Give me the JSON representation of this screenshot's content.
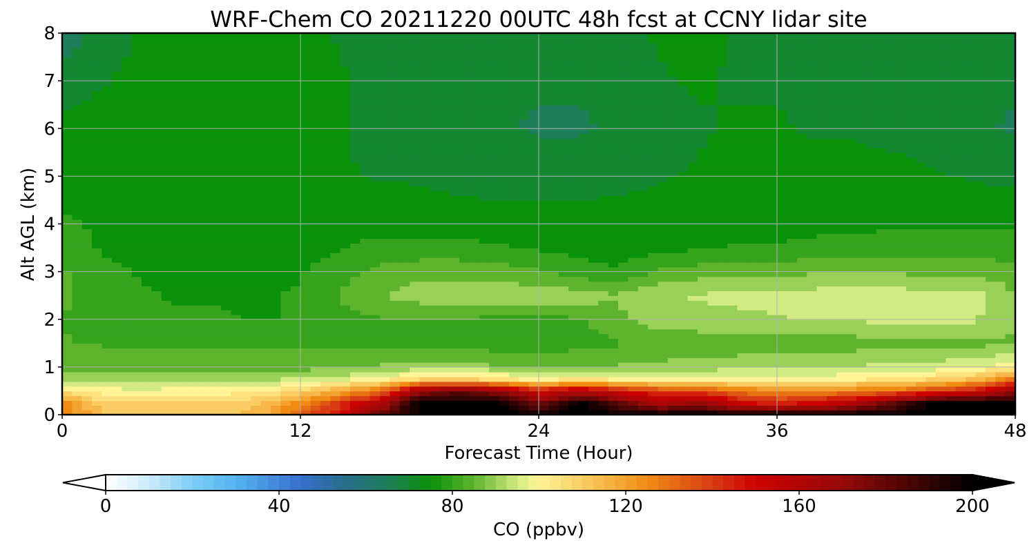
{
  "chart_data": {
    "type": "heatmap",
    "title": "WRF-Chem CO  20211220 00UTC 48h fcst at CCNY lidar site",
    "xlabel": "Forecast Time (Hour)",
    "ylabel": "Alt AGL (km)",
    "xlim": [
      0,
      48
    ],
    "ylim": [
      0,
      8
    ],
    "x_ticks": [
      0,
      12,
      24,
      36,
      48
    ],
    "y_ticks": [
      0,
      1,
      2,
      3,
      4,
      5,
      6,
      7,
      8
    ],
    "grid": true,
    "colorbar": {
      "label": "CO  (ppbv)",
      "min": 0,
      "max": 200,
      "ticks": [
        0,
        40,
        80,
        120,
        160,
        200
      ],
      "extend": "both",
      "orientation": "horizontal",
      "placement": "bottom"
    },
    "x": [
      0,
      2,
      4,
      6,
      8,
      10,
      12,
      14,
      16,
      18,
      20,
      22,
      24,
      26,
      28,
      30,
      32,
      34,
      36,
      38,
      40,
      42,
      44,
      46,
      48
    ],
    "y": [
      0,
      0.25,
      0.5,
      0.75,
      1,
      1.5,
      2,
      2.5,
      3,
      3.5,
      4,
      5,
      6,
      7,
      8
    ],
    "z": [
      [
        130,
        112,
        110,
        111,
        110,
        115,
        135,
        150,
        180,
        200,
        200,
        200,
        200,
        200,
        200,
        200,
        200,
        200,
        200,
        200,
        200,
        200,
        200,
        200,
        200
      ],
      [
        125,
        110,
        108,
        108,
        108,
        112,
        125,
        140,
        160,
        200,
        200,
        200,
        175,
        200,
        180,
        160,
        170,
        150,
        145,
        150,
        160,
        180,
        200,
        200,
        200
      ],
      [
        105,
        100,
        98,
        100,
        100,
        102,
        108,
        118,
        130,
        170,
        180,
        170,
        150,
        160,
        150,
        140,
        140,
        130,
        125,
        125,
        128,
        132,
        140,
        150,
        170
      ],
      [
        92,
        92,
        92,
        92,
        92,
        92,
        93,
        96,
        100,
        108,
        110,
        106,
        100,
        104,
        102,
        100,
        100,
        100,
        100,
        100,
        102,
        104,
        108,
        115,
        130
      ],
      [
        86,
        86,
        86,
        86,
        86,
        86,
        86,
        86,
        88,
        90,
        90,
        88,
        86,
        87,
        88,
        89,
        90,
        91,
        92,
        92,
        93,
        94,
        95,
        97,
        100
      ],
      [
        83,
        82,
        81,
        81,
        81,
        81,
        81,
        81,
        81,
        80,
        80,
        80,
        80,
        81,
        82,
        83,
        84,
        84,
        85,
        85,
        85,
        86,
        86,
        86,
        87
      ],
      [
        82,
        80,
        79,
        78,
        78,
        77,
        78,
        80,
        82,
        82,
        82,
        81,
        80,
        82,
        86,
        90,
        91,
        91,
        92,
        93,
        93,
        94,
        95,
        93,
        88
      ],
      [
        84,
        80,
        78,
        77,
        77,
        77,
        78,
        83,
        87,
        90,
        91,
        91,
        91,
        90,
        88,
        92,
        93,
        94,
        94,
        95,
        95,
        95,
        95,
        94,
        88
      ],
      [
        83,
        79,
        77,
        76,
        76,
        76,
        77,
        81,
        84,
        86,
        86,
        85,
        83,
        80,
        78,
        83,
        85,
        86,
        86,
        87,
        87,
        87,
        86,
        86,
        84
      ],
      [
        80,
        77,
        76,
        75,
        75,
        75,
        75,
        77,
        79,
        79,
        79,
        78,
        77,
        76,
        75,
        76,
        77,
        78,
        78,
        79,
        80,
        80,
        80,
        80,
        80
      ],
      [
        78,
        77,
        76,
        75,
        75,
        75,
        75,
        76,
        76,
        75,
        75,
        75,
        75,
        75,
        75,
        75,
        75,
        75,
        76,
        76,
        76,
        77,
        77,
        77,
        77
      ],
      [
        76,
        76,
        76,
        76,
        76,
        75,
        74,
        73,
        72,
        72,
        71,
        70,
        70,
        70,
        71,
        72,
        73,
        74,
        74,
        74,
        74,
        74,
        73,
        72,
        71
      ],
      [
        74,
        75,
        76,
        76,
        76,
        76,
        75,
        73,
        71,
        70,
        69,
        68,
        67,
        67,
        68,
        70,
        72,
        73,
        73,
        72,
        72,
        71,
        70,
        68,
        67
      ],
      [
        70,
        72,
        74,
        75,
        75,
        76,
        75,
        73,
        71,
        70,
        69,
        68,
        68,
        68,
        69,
        72,
        73,
        72,
        72,
        71,
        71,
        70,
        70,
        69,
        68
      ],
      [
        64,
        70,
        73,
        75,
        75,
        75,
        74,
        72,
        70,
        70,
        69,
        69,
        69,
        70,
        71,
        73,
        74,
        72,
        71,
        71,
        71,
        71,
        70,
        70,
        70
      ]
    ]
  }
}
